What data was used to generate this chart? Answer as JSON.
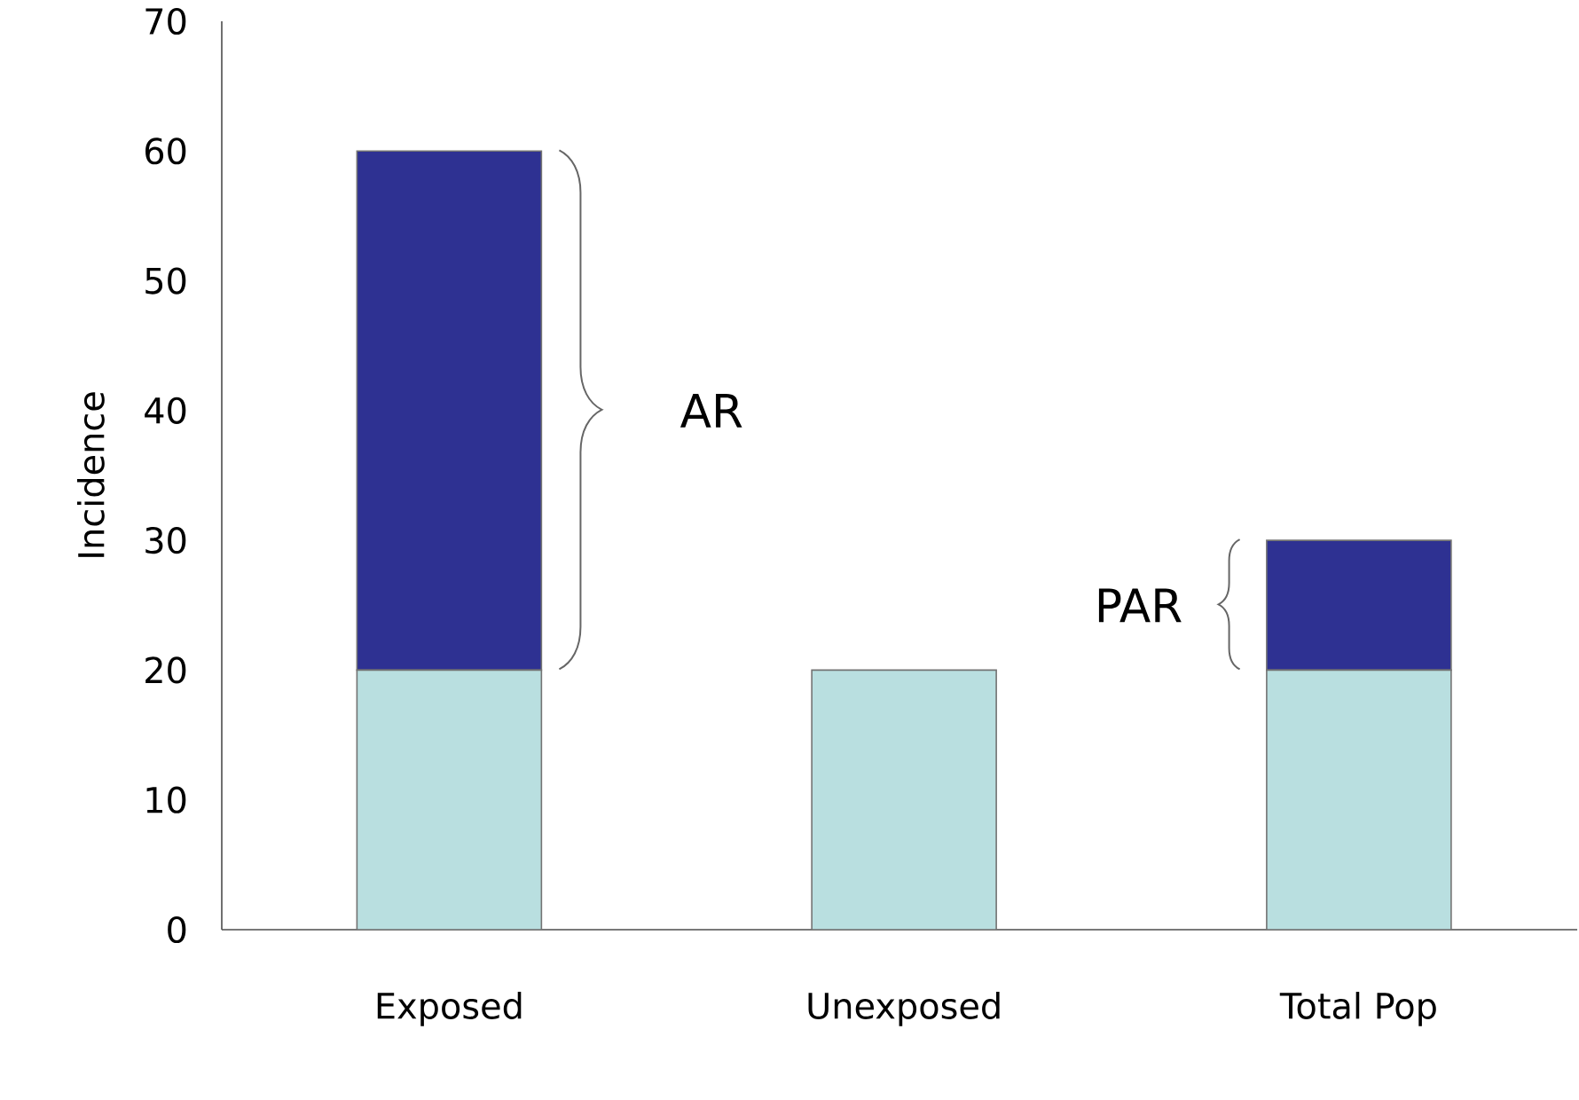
{
  "chart_data": {
    "type": "bar",
    "stacked": true,
    "ylabel": "Incidence",
    "categories": [
      "Exposed",
      "Unexposed",
      "Total Pop"
    ],
    "series": [
      {
        "color": "#b9dfe0",
        "values": [
          20,
          20,
          20
        ]
      },
      {
        "color": "#2e3192",
        "values": [
          40,
          0,
          10
        ]
      }
    ],
    "ylim": [
      0,
      70
    ],
    "yticks": [
      0,
      10,
      20,
      30,
      40,
      50,
      60,
      70
    ],
    "grid": false,
    "annotations": [
      "AR",
      "PAR"
    ]
  }
}
